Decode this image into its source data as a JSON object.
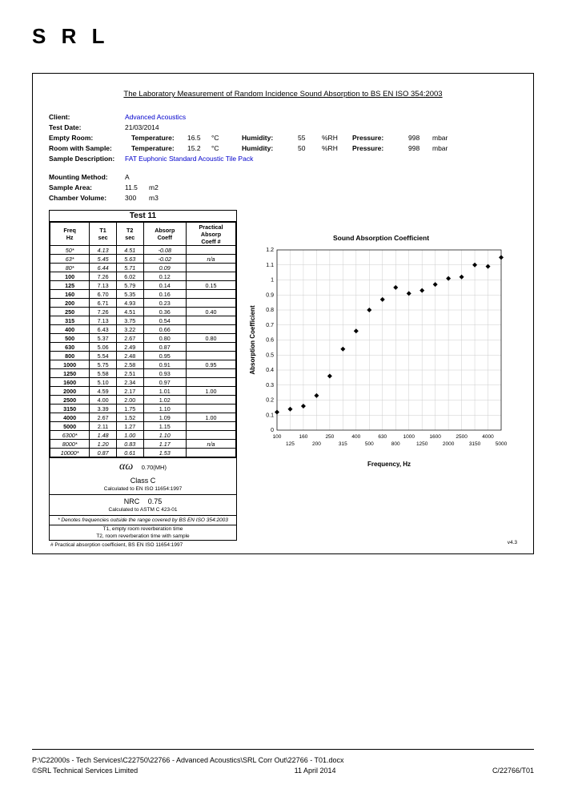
{
  "logo": "S R L",
  "title": "The Laboratory Measurement of Random Incidence Sound Absorption to BS EN ISO 354:2003",
  "meta": {
    "client_label": "Client:",
    "client": "Advanced Acoustics",
    "date_label": "Test Date:",
    "date": "21/03/2014",
    "empty_room_label": "Empty Room:",
    "room_sample_label": "Room with Sample:",
    "temp_label": "Temperature:",
    "temp1": "16.5",
    "temp2": "15.2",
    "temp_unit": "°C",
    "hum_label": "Humidity:",
    "hum1": "55",
    "hum2": "50",
    "hum_unit": "%RH",
    "press_label": "Pressure:",
    "press1": "998",
    "press2": "998",
    "press_unit": "mbar",
    "sample_desc_label": "Sample Description:",
    "sample_desc": "FAT Euphonic Standard Acoustic Tile Pack",
    "mount_label": "Mounting Method:",
    "mount": "A",
    "area_label": "Sample Area:",
    "area": "11.5",
    "area_unit": "m2",
    "vol_label": "Chamber Volume:",
    "vol": "300",
    "vol_unit": "m3"
  },
  "table": {
    "test_name": "Test 11",
    "headers": {
      "freq1": "Freq",
      "freq2": "Hz",
      "t1a": "T1",
      "t1b": "sec",
      "t2a": "T2",
      "t2b": "sec",
      "abs1": "Absorp",
      "abs2": "Coeff",
      "pr1": "Practical",
      "pr2": "Absorp",
      "pr3": "Coeff #"
    },
    "rows": [
      {
        "f": "50*",
        "t1": "4.13",
        "t2": "4.51",
        "a": "-0.08",
        "p": "",
        "it": true
      },
      {
        "f": "63*",
        "t1": "5.45",
        "t2": "5.63",
        "a": "-0.02",
        "p": "n/a",
        "it": true
      },
      {
        "f": "80*",
        "t1": "6.44",
        "t2": "5.71",
        "a": "0.09",
        "p": "",
        "it": true
      },
      {
        "f": "100",
        "t1": "7.26",
        "t2": "6.02",
        "a": "0.12",
        "p": ""
      },
      {
        "f": "125",
        "t1": "7.13",
        "t2": "5.79",
        "a": "0.14",
        "p": "0.15"
      },
      {
        "f": "160",
        "t1": "6.70",
        "t2": "5.35",
        "a": "0.16",
        "p": ""
      },
      {
        "f": "200",
        "t1": "6.71",
        "t2": "4.93",
        "a": "0.23",
        "p": ""
      },
      {
        "f": "250",
        "t1": "7.26",
        "t2": "4.51",
        "a": "0.36",
        "p": "0.40"
      },
      {
        "f": "315",
        "t1": "7.13",
        "t2": "3.75",
        "a": "0.54",
        "p": ""
      },
      {
        "f": "400",
        "t1": "6.43",
        "t2": "3.22",
        "a": "0.66",
        "p": ""
      },
      {
        "f": "500",
        "t1": "5.37",
        "t2": "2.67",
        "a": "0.80",
        "p": "0.80"
      },
      {
        "f": "630",
        "t1": "5.06",
        "t2": "2.49",
        "a": "0.87",
        "p": ""
      },
      {
        "f": "800",
        "t1": "5.54",
        "t2": "2.48",
        "a": "0.95",
        "p": ""
      },
      {
        "f": "1000",
        "t1": "5.75",
        "t2": "2.58",
        "a": "0.91",
        "p": "0.95"
      },
      {
        "f": "1250",
        "t1": "5.58",
        "t2": "2.51",
        "a": "0.93",
        "p": ""
      },
      {
        "f": "1600",
        "t1": "5.10",
        "t2": "2.34",
        "a": "0.97",
        "p": ""
      },
      {
        "f": "2000",
        "t1": "4.59",
        "t2": "2.17",
        "a": "1.01",
        "p": "1.00"
      },
      {
        "f": "2500",
        "t1": "4.00",
        "t2": "2.00",
        "a": "1.02",
        "p": ""
      },
      {
        "f": "3150",
        "t1": "3.39",
        "t2": "1.75",
        "a": "1.10",
        "p": ""
      },
      {
        "f": "4000",
        "t1": "2.67",
        "t2": "1.52",
        "a": "1.09",
        "p": "1.00"
      },
      {
        "f": "5000",
        "t1": "2.11",
        "t2": "1.27",
        "a": "1.15",
        "p": ""
      },
      {
        "f": "6300*",
        "t1": "1.48",
        "t2": "1.00",
        "a": "1.10",
        "p": "",
        "it": true
      },
      {
        "f": "8000*",
        "t1": "1.20",
        "t2": "0.83",
        "a": "1.17",
        "p": "n/a",
        "it": true
      },
      {
        "f": "10000*",
        "t1": "0.87",
        "t2": "0.61",
        "a": "1.53",
        "p": "",
        "it": true
      }
    ],
    "aw_label": "αω",
    "aw_val": "0.70(MH)",
    "class": "Class C",
    "class_note": "Calculated to EN ISO 11654:1997",
    "nrc_label": "NRC",
    "nrc_val": "0.75",
    "nrc_note": "Calculated to ASTM C 423-01",
    "denote": "* Denotes frequencies outside the range covered by BS EN ISO 354:2003",
    "t1_note": "T1, empty room reverberation time",
    "t2_note": "T2, room reverberation time with sample",
    "foot_left": "# Practical absorption coefficient, BS EN ISO 11654:1997",
    "foot_right": "v4.3"
  },
  "chart": {
    "title": "Sound Absorption Coefficient",
    "xlabel": "Frequency, Hz",
    "ylabel": "Absorption Coefficient",
    "x_ticks_top": [
      "100",
      "160",
      "250",
      "400",
      "630",
      "1000",
      "1600",
      "2500",
      "4000"
    ],
    "x_ticks_bot": [
      "125",
      "200",
      "315",
      "500",
      "800",
      "1250",
      "2000",
      "3150",
      "5000"
    ],
    "y_ticks": [
      "0",
      "0.1",
      "0.2",
      "0.3",
      "0.4",
      "0.5",
      "0.6",
      "0.7",
      "0.8",
      "0.9",
      "1",
      "1.1",
      "1.2"
    ],
    "ylim": [
      0,
      1.2
    ],
    "grid_color": "#cccccc",
    "marker_color": "#000000",
    "marker_type": "diamond",
    "marker_size": 3,
    "background": "#ffffff",
    "points": [
      {
        "i": 0,
        "y": 0.12
      },
      {
        "i": 1,
        "y": 0.14
      },
      {
        "i": 2,
        "y": 0.16
      },
      {
        "i": 3,
        "y": 0.23
      },
      {
        "i": 4,
        "y": 0.36
      },
      {
        "i": 5,
        "y": 0.54
      },
      {
        "i": 6,
        "y": 0.66
      },
      {
        "i": 7,
        "y": 0.8
      },
      {
        "i": 8,
        "y": 0.87
      },
      {
        "i": 9,
        "y": 0.95
      },
      {
        "i": 10,
        "y": 0.91
      },
      {
        "i": 11,
        "y": 0.93
      },
      {
        "i": 12,
        "y": 0.97
      },
      {
        "i": 13,
        "y": 1.01
      },
      {
        "i": 14,
        "y": 1.02
      },
      {
        "i": 15,
        "y": 1.1
      },
      {
        "i": 16,
        "y": 1.09
      },
      {
        "i": 17,
        "y": 1.15
      }
    ]
  },
  "footer": {
    "path": "P:\\C22000s - Tech Services\\C22750\\22766 - Advanced Acoustics\\SRL Corr Out\\22766 - T01.docx",
    "copyright": "©SRL Technical Services Limited",
    "date": "11 April 2014",
    "ref": "C/22766/T01"
  }
}
